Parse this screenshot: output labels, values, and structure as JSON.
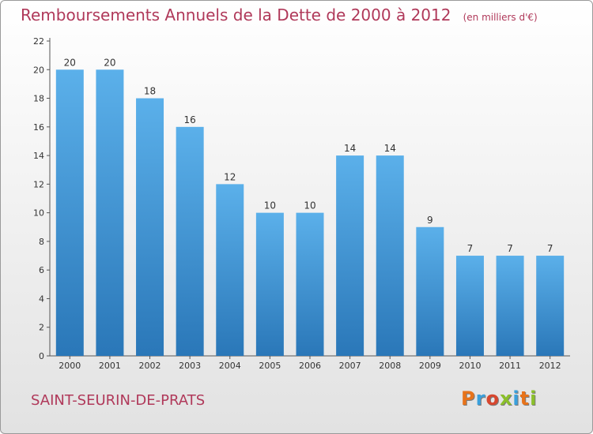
{
  "title": "Remboursements Annuels de la Dette de 2000 à 2012",
  "unit": "(en milliers d'€)",
  "commune": "SAINT-SEURIN-DE-PRATS",
  "logo": {
    "letters": [
      "P",
      "r",
      "o",
      "x",
      "i",
      "t",
      "i"
    ],
    "colors": [
      "#e8731a",
      "#3aa0dc",
      "#d7472f",
      "#8bbf2b",
      "#3aa0dc",
      "#e8731a",
      "#8bbf2b"
    ]
  },
  "colors": {
    "bar_top": "#5bb0ea",
    "bar_bottom": "#2a77b8",
    "title": "#b0395a"
  },
  "chart_data": {
    "type": "bar",
    "title": "Remboursements Annuels de la Dette de 2000 à 2012",
    "categories": [
      "2000",
      "2001",
      "2002",
      "2003",
      "2004",
      "2005",
      "2006",
      "2007",
      "2008",
      "2009",
      "2010",
      "2011",
      "2012"
    ],
    "values": [
      20,
      20,
      18,
      16,
      12,
      10,
      10,
      14,
      14,
      9,
      7,
      7,
      7
    ],
    "ylim": [
      0,
      22
    ],
    "yticks": [
      0,
      2,
      4,
      6,
      8,
      10,
      12,
      14,
      16,
      18,
      20,
      22
    ],
    "grid": false,
    "xlabel": "",
    "ylabel": ""
  }
}
